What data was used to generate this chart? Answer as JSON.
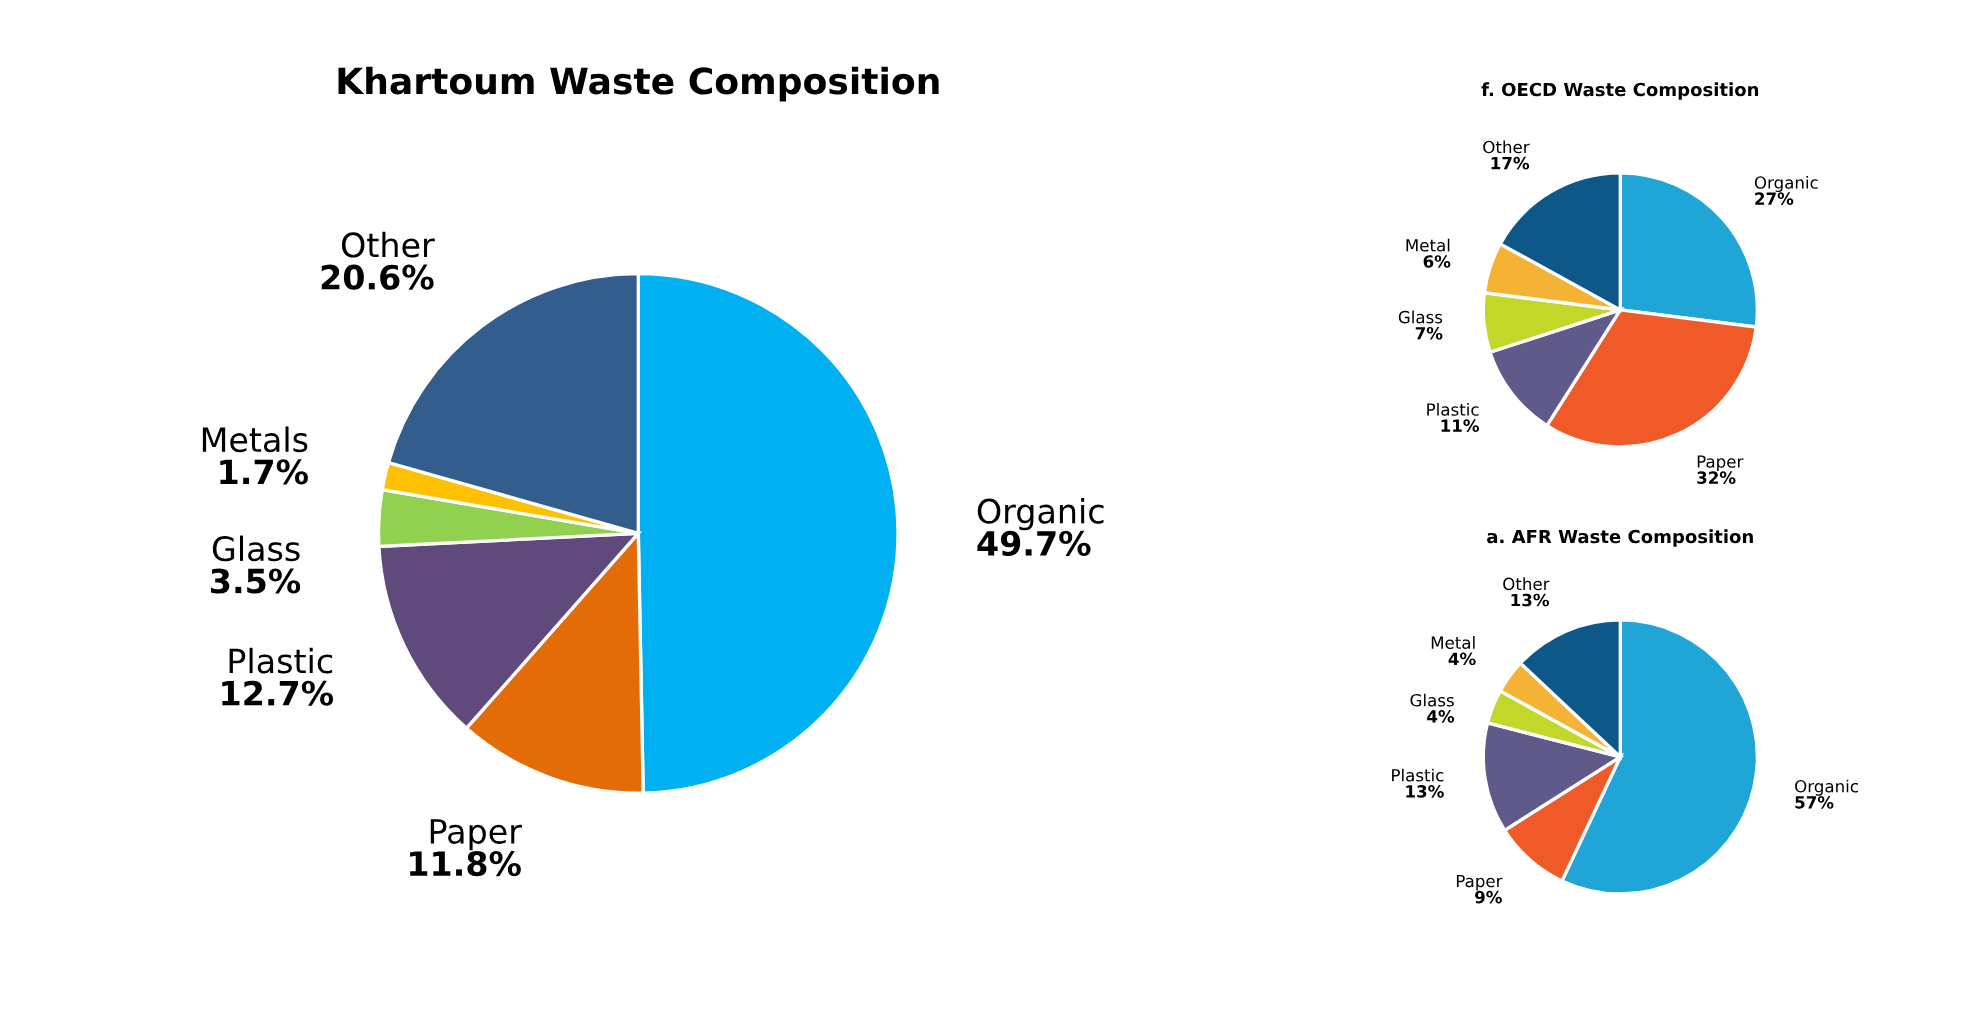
{
  "chart_data": [
    {
      "type": "pie",
      "title": "Khartoum Waste Composition",
      "categories": [
        "Organic",
        "Paper",
        "Plastic",
        "Glass",
        "Metals",
        "Other"
      ],
      "values": [
        49.7,
        11.8,
        12.7,
        3.5,
        1.7,
        20.6
      ],
      "value_labels": [
        "49.7%",
        "11.8%",
        "12.7%",
        "3.5%",
        "1.7%",
        "20.6%"
      ],
      "colors": [
        "#00b0f0",
        "#e36c09",
        "#604a7b",
        "#92d050",
        "#ffc000",
        "#325d8c"
      ]
    },
    {
      "type": "pie",
      "title": "f. OECD Waste Composition",
      "categories": [
        "Organic",
        "Paper",
        "Plastic",
        "Glass",
        "Metal",
        "Other"
      ],
      "values": [
        27,
        32,
        11,
        7,
        6,
        17
      ],
      "value_labels": [
        "27%",
        "32%",
        "11%",
        "7%",
        "6%",
        "17%"
      ],
      "colors": [
        "#1fa5d6",
        "#f05a28",
        "#5f5a8a",
        "#c3d62a",
        "#f5b335",
        "#0d5889"
      ]
    },
    {
      "type": "pie",
      "title": "a. AFR Waste Composition",
      "categories": [
        "Organic",
        "Paper",
        "Plastic",
        "Glass",
        "Metal",
        "Other"
      ],
      "values": [
        57,
        9,
        13,
        4,
        4,
        13
      ],
      "value_labels": [
        "57%",
        "9%",
        "13%",
        "4%",
        "4%",
        "13%"
      ],
      "colors": [
        "#1fa5d6",
        "#f05a28",
        "#5f5a8a",
        "#c3d62a",
        "#f5b335",
        "#0d5889"
      ]
    }
  ]
}
